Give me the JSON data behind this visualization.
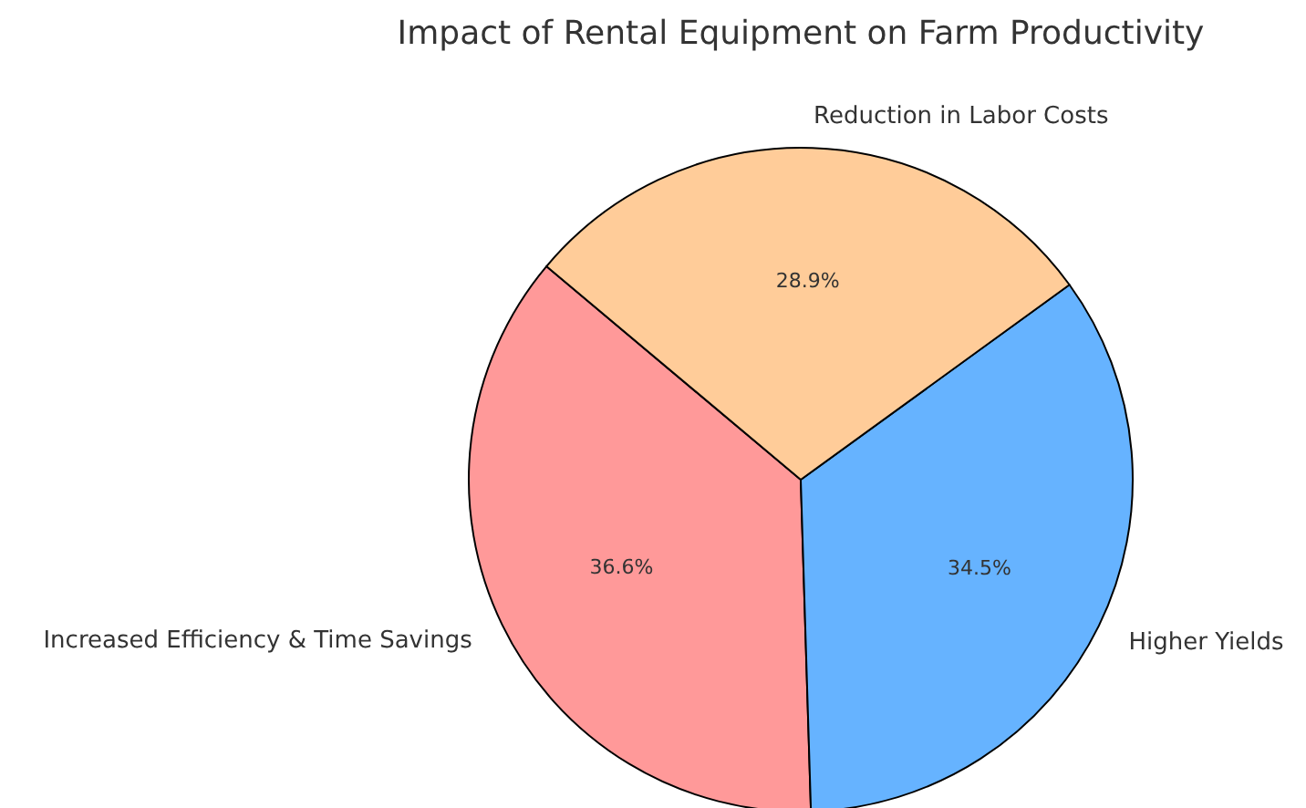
{
  "chart_data": {
    "type": "pie",
    "title": "Impact of Rental Equipment on Farm Productivity",
    "categories": [
      "Increased Efficiency & Time Savings",
      "Higher Yields",
      "Reduction in Labor Costs"
    ],
    "values": [
      36.6,
      34.5,
      28.9
    ],
    "colors": [
      "#ff9999",
      "#66b3ff",
      "#ffcc99"
    ],
    "value_labels": [
      "36.6%",
      "34.5%",
      "28.9%"
    ],
    "legend": false
  }
}
